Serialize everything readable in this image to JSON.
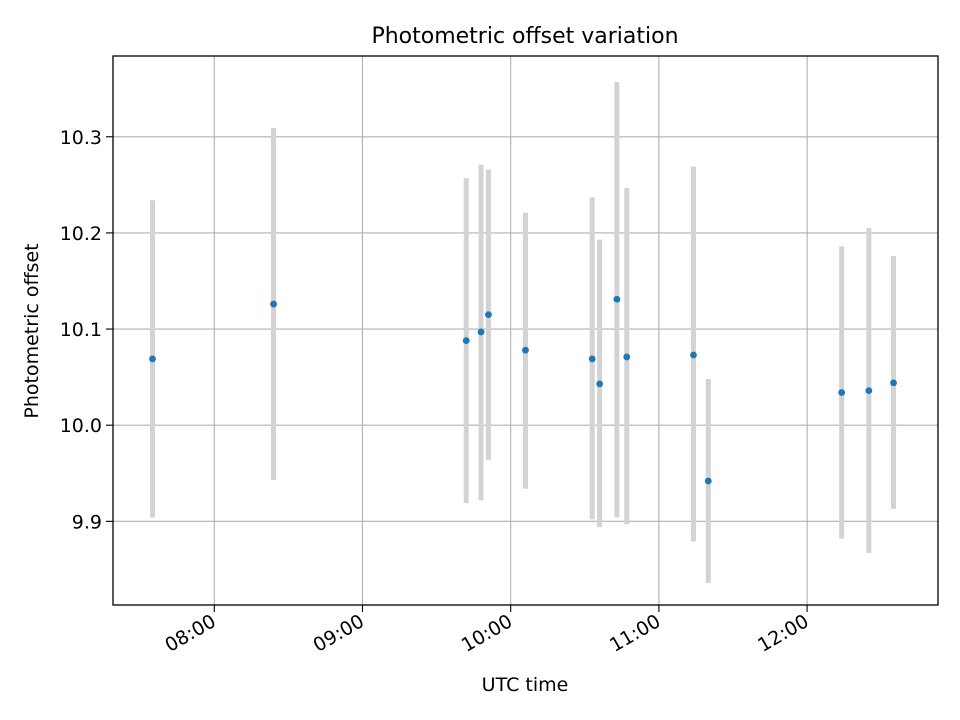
{
  "chart_data": {
    "type": "scatter",
    "title": "Photometric offset variation",
    "xlabel": "UTC time",
    "ylabel": "Photometric offset",
    "x_unit": "time of day (UTC)",
    "xlim": [
      "07:19",
      "12:53"
    ],
    "ylim": [
      9.813,
      10.384
    ],
    "xticks": [
      "08:00",
      "09:00",
      "10:00",
      "11:00",
      "12:00"
    ],
    "yticks": [
      "9.9",
      "10.0",
      "10.1",
      "10.2",
      "10.3"
    ],
    "grid": true,
    "legend": false,
    "marker_color": "#1f77b4",
    "errorbar_color": "#d3d3d3",
    "points": [
      {
        "x": "07:35",
        "y": 10.069,
        "ylow": 9.904,
        "yhigh": 10.234
      },
      {
        "x": "08:24",
        "y": 10.126,
        "ylow": 9.943,
        "yhigh": 10.309
      },
      {
        "x": "09:42",
        "y": 10.088,
        "ylow": 9.919,
        "yhigh": 10.257
      },
      {
        "x": "09:48",
        "y": 10.097,
        "ylow": 9.922,
        "yhigh": 10.271
      },
      {
        "x": "09:51",
        "y": 10.115,
        "ylow": 9.964,
        "yhigh": 10.266
      },
      {
        "x": "10:06",
        "y": 10.078,
        "ylow": 9.934,
        "yhigh": 10.221
      },
      {
        "x": "10:33",
        "y": 10.069,
        "ylow": 9.902,
        "yhigh": 10.237
      },
      {
        "x": "10:36",
        "y": 10.043,
        "ylow": 9.894,
        "yhigh": 10.193
      },
      {
        "x": "10:43",
        "y": 10.131,
        "ylow": 9.904,
        "yhigh": 10.357
      },
      {
        "x": "10:47",
        "y": 10.071,
        "ylow": 9.897,
        "yhigh": 10.247
      },
      {
        "x": "11:14",
        "y": 10.073,
        "ylow": 9.879,
        "yhigh": 10.269
      },
      {
        "x": "11:20",
        "y": 9.942,
        "ylow": 9.836,
        "yhigh": 10.048
      },
      {
        "x": "12:14",
        "y": 10.034,
        "ylow": 9.882,
        "yhigh": 10.186
      },
      {
        "x": "12:25",
        "y": 10.036,
        "ylow": 9.867,
        "yhigh": 10.205
      },
      {
        "x": "12:35",
        "y": 10.044,
        "ylow": 9.913,
        "yhigh": 10.176
      }
    ]
  }
}
